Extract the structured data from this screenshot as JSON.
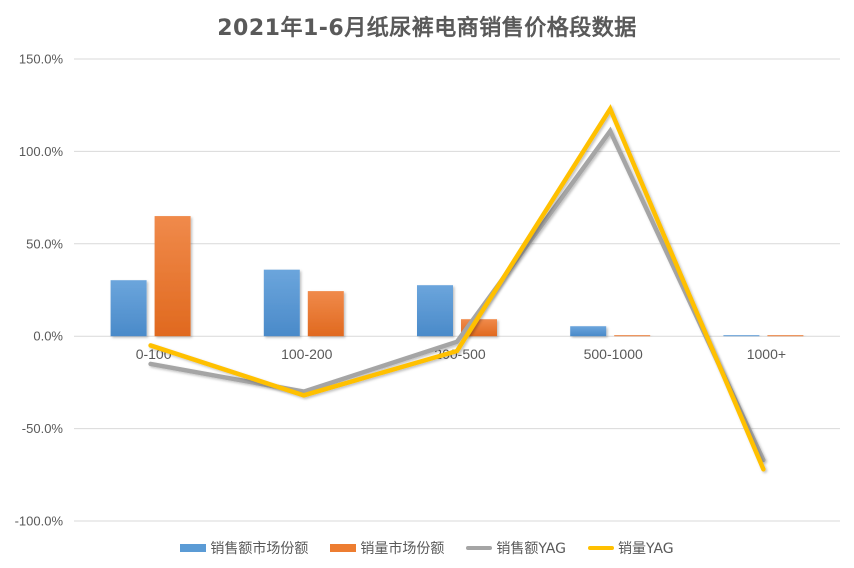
{
  "chart_data": {
    "type": "bar+line",
    "title": "2021年1-6月纸尿裤电商销售价格段数据",
    "categories": [
      "0-100",
      "100-200",
      "200-500",
      "500-1000",
      "1000+"
    ],
    "series": [
      {
        "name": "销售额市场份额",
        "type": "bar",
        "color": "#5B9BD5",
        "values": [
          30.3,
          36.0,
          27.6,
          5.4,
          0.2
        ]
      },
      {
        "name": "销量市场份额",
        "type": "bar",
        "color": "#ED7D31",
        "values": [
          65.0,
          24.4,
          9.2,
          0.5,
          0.3
        ]
      },
      {
        "name": "销售额YAG",
        "type": "line",
        "color": "#A5A5A5",
        "values": [
          -15.0,
          -30.0,
          -3.0,
          111.0,
          -67.0
        ]
      },
      {
        "name": "销量YAG",
        "type": "line",
        "color": "#FFC000",
        "values": [
          -5.0,
          -32.0,
          -8.0,
          123.0,
          -72.0
        ]
      }
    ],
    "yticks": [
      "150.0%",
      "100.0%",
      "50.0%",
      "0.0%",
      "-50.0%",
      "-100.0%"
    ],
    "ylim": [
      -100,
      150
    ],
    "xlabel": "",
    "ylabel": "",
    "grid": true,
    "legend_position": "bottom"
  },
  "legend": {
    "items": [
      "销售额市场份额",
      "销量市场份额",
      "销售额YAG",
      "销量YAG"
    ]
  }
}
